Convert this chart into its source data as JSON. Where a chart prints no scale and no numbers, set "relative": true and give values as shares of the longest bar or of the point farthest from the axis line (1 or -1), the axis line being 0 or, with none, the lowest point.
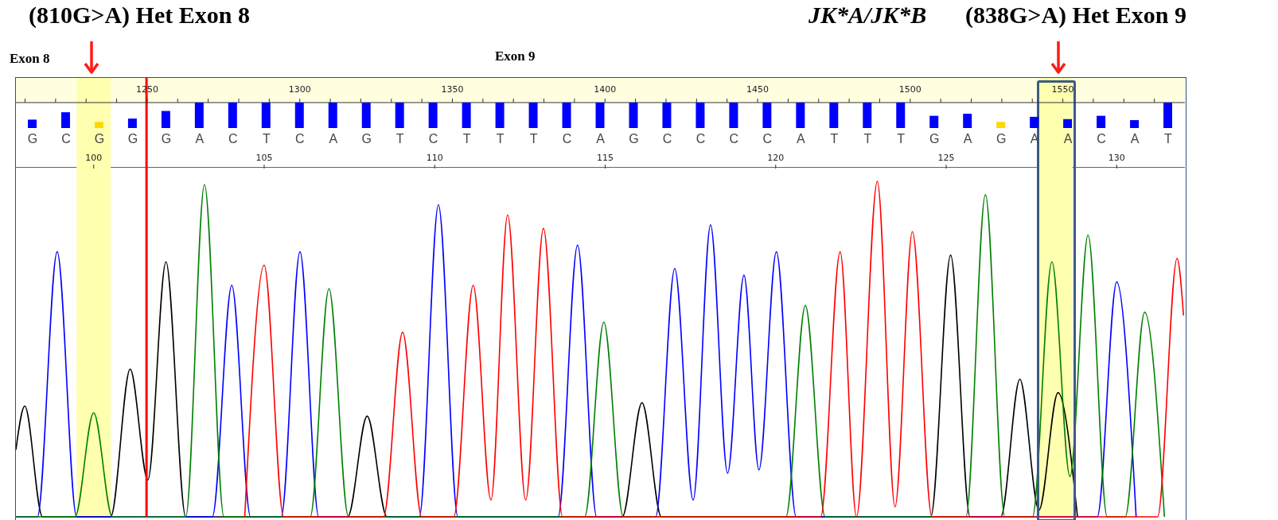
{
  "chart_data": [
    {
      "type": "bar",
      "relative": true,
      "categories": [
        "G",
        "C",
        "G",
        "G",
        "G",
        "A",
        "C",
        "T",
        "C",
        "A",
        "G",
        "T",
        "C",
        "T",
        "T",
        "T",
        "C",
        "A",
        "G",
        "C",
        "C",
        "C",
        "C",
        "A",
        "T",
        "T",
        "T",
        "G",
        "A",
        "G",
        "A",
        "A",
        "C",
        "A",
        "T"
      ],
      "values": [
        0.33,
        0.62,
        0.24,
        0.37,
        0.67,
        1,
        1,
        1,
        1,
        1,
        1,
        1,
        1,
        1,
        1,
        1,
        1,
        1,
        1,
        1,
        1,
        1,
        1,
        1,
        1,
        1,
        1,
        0.48,
        0.56,
        0.24,
        0.44,
        0.35,
        0.48,
        0.31,
        1
      ],
      "colors": [
        "#0000ff",
        "#0000ff",
        "#ffd700",
        "#0000ff",
        "#0000ff",
        "#0000ff",
        "#0000ff",
        "#0000ff",
        "#0000ff",
        "#0000ff",
        "#0000ff",
        "#0000ff",
        "#0000ff",
        "#0000ff",
        "#0000ff",
        "#0000ff",
        "#0000ff",
        "#0000ff",
        "#0000ff",
        "#0000ff",
        "#0000ff",
        "#0000ff",
        "#0000ff",
        "#0000ff",
        "#0000ff",
        "#0000ff",
        "#0000ff",
        "#0000ff",
        "#0000ff",
        "#ffd700",
        "#0000ff",
        "#0000ff",
        "#0000ff",
        "#0000ff",
        "#0000ff"
      ],
      "x2lim": [
        1207,
        1590
      ],
      "x2ticks": [
        {
          "value": 1210,
          "label": null
        },
        {
          "value": 1220,
          "label": null
        },
        {
          "value": 1230,
          "label": null
        },
        {
          "value": 1240,
          "label": null
        },
        1250,
        {
          "value": 1260,
          "label": null
        },
        {
          "value": 1270,
          "label": null
        },
        {
          "value": 1280,
          "label": null
        },
        {
          "value": 1290,
          "label": null
        },
        1300,
        {
          "value": 1310,
          "label": null
        },
        {
          "value": 1320,
          "label": null
        },
        {
          "value": 1330,
          "label": null
        },
        {
          "value": 1340,
          "label": null
        },
        1350,
        {
          "value": 1360,
          "label": null
        },
        {
          "value": 1370,
          "label": null
        },
        {
          "value": 1380,
          "label": null
        },
        {
          "value": 1390,
          "label": null
        },
        1400,
        {
          "value": 1410,
          "label": null
        },
        {
          "value": 1420,
          "label": null
        },
        {
          "value": 1430,
          "label": null
        },
        {
          "value": 1440,
          "label": null
        },
        1450,
        {
          "value": 1460,
          "label": null
        },
        {
          "value": 1470,
          "label": null
        },
        {
          "value": 1480,
          "label": null
        },
        {
          "value": 1490,
          "label": null
        },
        1500,
        {
          "value": 1510,
          "label": null
        },
        {
          "value": 1520,
          "label": null
        },
        {
          "value": 1530,
          "label": null
        },
        {
          "value": 1540,
          "label": null
        },
        1550,
        {
          "value": 1560,
          "label": null
        },
        {
          "value": 1570,
          "label": null
        },
        {
          "value": 1580,
          "label": null
        }
      ],
      "annotations": [
        "(810G>A) Het Exon 8",
        "Exon 8",
        "Exon 9",
        "JK*A/JK*B",
        "(838G>A) Het Exon 9"
      ]
    },
    {
      "type": "line",
      "relative": true,
      "xlim": [
        97.72,
        132
      ],
      "xticks": [
        100,
        105,
        110,
        115,
        120,
        125,
        130
      ],
      "series": [
        {
          "color": "#000000",
          "x": [
            97.72,
            97.98,
            98.5,
            100.5,
            101.07,
            101.59,
            102.12,
            102.7,
            107.45,
            108.02,
            108.6,
            115.5,
            116.08,
            116.65,
            124.55,
            125.13,
            125.7,
            126.6,
            127.16,
            127.72,
            128.28,
            128.85
          ],
          "values": [
            0.2,
            0.33,
            0,
            0,
            0.44,
            0.11,
            0.76,
            0,
            0,
            0.3,
            0,
            0,
            0.34,
            0,
            0,
            0.78,
            0,
            0,
            0.41,
            0.02,
            0.37,
            0
          ]
        },
        {
          "color": "#0000ff",
          "x": [
            97.72,
            98.35,
            98.93,
            99.5,
            103.48,
            104.05,
            104.6,
            105.5,
            106.05,
            106.6,
            109.55,
            110.11,
            110.68,
            113.62,
            114.19,
            114.75,
            116.48,
            117.04,
            117.58,
            118.09,
            118.59,
            119.07,
            119.51,
            120.02,
            120.6,
            129.43,
            130.0,
            130.57
          ],
          "values": [
            0,
            0,
            0.79,
            0,
            0,
            0.69,
            0,
            0,
            0.79,
            0,
            0,
            0.93,
            0,
            0,
            0.81,
            0,
            0,
            0.74,
            0.05,
            0.87,
            0.13,
            0.72,
            0.14,
            0.79,
            0,
            0,
            0.7,
            0
          ]
        },
        {
          "color": "#008000",
          "x": [
            97.72,
            99.45,
            100.0,
            100.55,
            102.7,
            103.25,
            103.82,
            106.35,
            106.9,
            107.47,
            114.4,
            114.96,
            115.53,
            120.3,
            120.87,
            121.45,
            125.58,
            126.15,
            126.72,
            127.53,
            128.1,
            128.63,
            129.16,
            129.72,
            130.25,
            130.82,
            131.4
          ],
          "values": [
            0,
            0,
            0.31,
            0,
            0,
            0.99,
            0,
            0,
            0.68,
            0,
            0,
            0.58,
            0,
            0,
            0.63,
            0,
            0,
            0.96,
            0,
            0,
            0.76,
            0.12,
            0.84,
            0,
            0,
            0.61,
            0
          ]
        },
        {
          "color": "#ff0000",
          "x": [
            104.43,
            105.0,
            105.57,
            108.5,
            109.06,
            109.62,
            110.56,
            111.13,
            111.65,
            112.14,
            112.67,
            113.19,
            113.75,
            121.32,
            121.89,
            122.37,
            122.98,
            123.5,
            124.01,
            124.58,
            131.2,
            131.77,
            131.96
          ],
          "values": [
            0,
            0.75,
            0,
            0,
            0.55,
            0,
            0,
            0.69,
            0.05,
            0.9,
            0.05,
            0.86,
            0,
            0,
            0.79,
            0,
            1,
            0.03,
            0.85,
            0,
            0,
            0.77,
            0.6
          ]
        }
      ],
      "bands": [
        {
          "axis": "x",
          "from": 99.5,
          "to": 100.5,
          "color": "#ffffb0"
        },
        {
          "axis": "x",
          "from": 127.7,
          "to": 128.7,
          "color": "#ffffb0"
        }
      ],
      "ref_lines": [
        {
          "axis": "x",
          "value": 101.55,
          "color": "#ff0000"
        }
      ]
    }
  ]
}
